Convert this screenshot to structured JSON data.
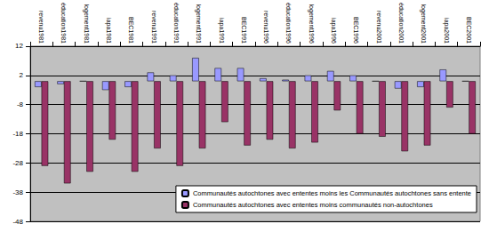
{
  "chart_data": {
    "type": "bar",
    "categories": [
      "revenu1981",
      "éducation1981",
      "logement1981",
      "iapa1981",
      "BEC1981",
      "revenu1991",
      "éducation1991",
      "logement1991",
      "iapa1991",
      "BEC1991",
      "revenu1996",
      "éducation1996",
      "logement1996",
      "iapa1996",
      "BEC1996",
      "revenu2001",
      "éducation2001",
      "logement2001",
      "iapa2001",
      "BEC2001"
    ],
    "series": [
      {
        "name": "Communautés autochtones avec ententes moins les Communautés autochtones sans entente",
        "color": "#9999ff",
        "values": [
          -2,
          -1,
          0,
          -3,
          -2,
          3,
          2,
          8,
          4.5,
          4.5,
          1,
          0.5,
          2,
          3.5,
          2,
          0,
          -2.5,
          -2,
          4,
          0
        ]
      },
      {
        "name": "Communautés autochtones avec ententes moins communautés non-autochtones",
        "color": "#993366",
        "values": [
          -29,
          -35,
          -31,
          -20,
          -31,
          -23,
          -29,
          -23,
          -14,
          -22,
          -20,
          -23,
          -21,
          -10,
          -18,
          -19,
          -24,
          -22,
          -9,
          -18
        ]
      }
    ],
    "ylim": [
      -48,
      12
    ],
    "yticks": [
      -48,
      -38,
      -28,
      -18,
      -8,
      2,
      12
    ],
    "grid": true,
    "legend": "lower right"
  }
}
